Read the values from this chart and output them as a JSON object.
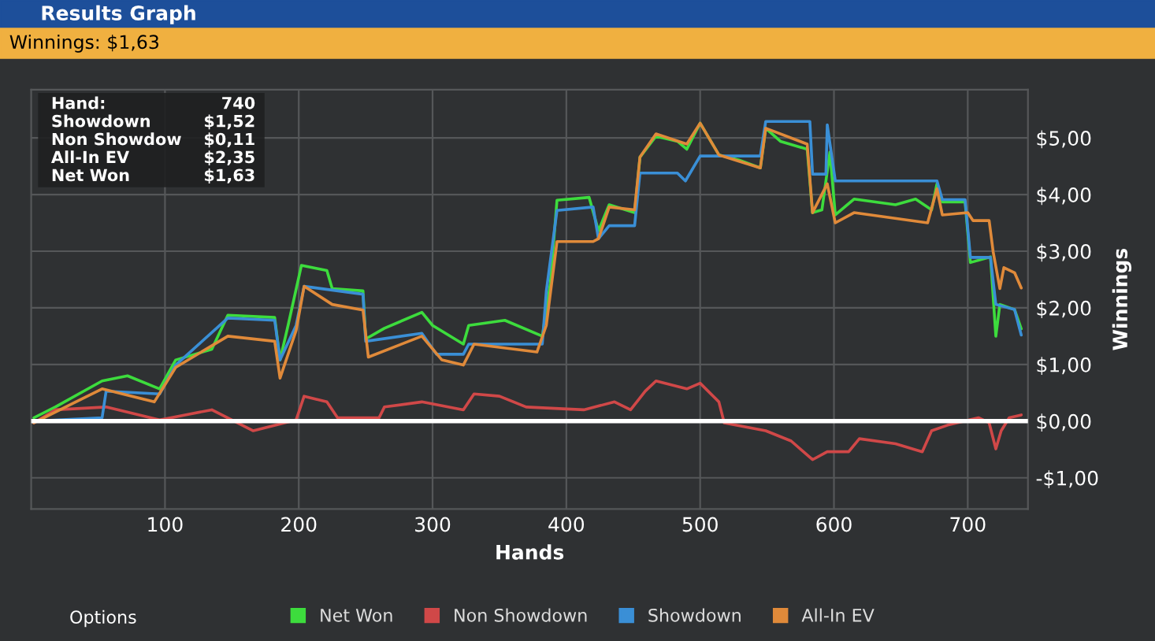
{
  "chart_data": {
    "type": "line",
    "title": "Results Graph",
    "subtitle": "Winnings: $1,63",
    "xlabel": "Hands",
    "ylabel": "Winnings",
    "xlim": [
      0,
      745
    ],
    "xticks": [
      100,
      200,
      300,
      400,
      500,
      600,
      700
    ],
    "ylim": [
      -1.55,
      5.85
    ],
    "yticks": [
      {
        "value": -1,
        "label": "-$1,00"
      },
      {
        "value": 0,
        "label": "$0,00"
      },
      {
        "value": 1,
        "label": "$1,00"
      },
      {
        "value": 2,
        "label": "$2,00"
      },
      {
        "value": 3,
        "label": "$3,00"
      },
      {
        "value": 4,
        "label": "$4,00"
      },
      {
        "value": 5,
        "label": "$5,00"
      }
    ],
    "grid": true,
    "legend": "bottom",
    "marker": "none",
    "line_style": "solid",
    "ref_lines": [
      {
        "axis": "y",
        "value": 0,
        "color": "#ffffff"
      }
    ],
    "annotations": [
      "Hand:",
      "740",
      "Showdown",
      "$1,52",
      "Non Showdow",
      "$0,11",
      "All-In EV",
      "$2,35",
      "Net Won",
      "$1,63",
      "Options"
    ],
    "series": [
      {
        "name": "Net Won",
        "color": "#3ddc3d",
        "x": [
          2,
          18,
          53,
          72,
          96,
          108,
          135,
          147,
          182,
          186,
          192,
          202,
          221,
          225,
          248,
          250,
          264,
          292,
          300,
          323,
          327,
          354,
          382,
          388,
          393,
          417,
          424,
          432,
          451,
          455,
          467,
          483,
          490,
          500,
          514,
          529,
          545,
          549,
          560,
          580,
          584,
          591,
          597,
          601,
          615,
          646,
          661,
          673,
          677,
          681,
          698,
          702,
          717,
          721,
          724,
          735,
          740
        ],
        "values": [
          0.06,
          0.25,
          0.71,
          0.8,
          0.57,
          1.08,
          1.27,
          1.87,
          1.83,
          1.08,
          1.69,
          2.75,
          2.66,
          2.34,
          2.3,
          1.45,
          1.64,
          1.92,
          1.69,
          1.36,
          1.69,
          1.78,
          1.5,
          2.43,
          3.9,
          3.95,
          3.36,
          3.82,
          3.68,
          4.66,
          5.03,
          4.94,
          4.8,
          5.26,
          4.7,
          4.61,
          4.47,
          5.17,
          4.94,
          4.8,
          3.68,
          3.73,
          4.75,
          3.64,
          3.92,
          3.82,
          3.92,
          3.73,
          4.19,
          3.87,
          3.87,
          2.8,
          2.9,
          1.5,
          2.06,
          1.97,
          1.63
        ]
      },
      {
        "name": "Non Showdown",
        "color": "#d04848",
        "x": [
          2,
          18,
          56,
          96,
          115,
          135,
          166,
          198,
          204,
          221,
          229,
          260,
          264,
          292,
          323,
          331,
          350,
          370,
          413,
          436,
          448,
          459,
          467,
          490,
          500,
          514,
          518,
          549,
          568,
          584,
          595,
          611,
          619,
          646,
          666,
          673,
          685,
          708,
          716,
          721,
          725,
          731,
          740
        ],
        "values": [
          -0.03,
          0.2,
          0.25,
          0.02,
          0.11,
          0.2,
          -0.17,
          0.02,
          0.44,
          0.34,
          0.06,
          0.06,
          0.25,
          0.34,
          0.2,
          0.48,
          0.44,
          0.25,
          0.2,
          0.34,
          0.2,
          0.53,
          0.71,
          0.57,
          0.67,
          0.34,
          -0.03,
          -0.17,
          -0.35,
          -0.68,
          -0.54,
          -0.54,
          -0.31,
          -0.4,
          -0.54,
          -0.17,
          -0.07,
          0.06,
          -0.03,
          -0.49,
          -0.17,
          0.06,
          0.11
        ]
      },
      {
        "name": "Showdown",
        "color": "#3a8fd6",
        "x": [
          2,
          53,
          56,
          96,
          108,
          147,
          182,
          186,
          198,
          204,
          248,
          250,
          292,
          303,
          323,
          327,
          382,
          385,
          393,
          420,
          424,
          432,
          451,
          455,
          483,
          489,
          500,
          545,
          549,
          582,
          584,
          594,
          595,
          601,
          677,
          681,
          698,
          702,
          717,
          721,
          735,
          740
        ],
        "values": [
          0,
          0.06,
          0.53,
          0.48,
          0.99,
          1.82,
          1.78,
          1.08,
          1.69,
          2.38,
          2.24,
          1.41,
          1.55,
          1.18,
          1.18,
          1.36,
          1.36,
          2.29,
          3.72,
          3.78,
          3.22,
          3.45,
          3.45,
          4.38,
          4.38,
          4.24,
          4.68,
          4.68,
          5.29,
          5.29,
          4.36,
          4.36,
          5.23,
          4.24,
          4.24,
          3.91,
          3.91,
          2.89,
          2.89,
          2.06,
          1.97,
          1.52
        ]
      },
      {
        "name": "All-In EV",
        "color": "#e08a3a",
        "x": [
          2,
          18,
          53,
          92,
          108,
          147,
          182,
          186,
          198,
          204,
          225,
          248,
          252,
          292,
          307,
          323,
          331,
          378,
          385,
          393,
          420,
          424,
          432,
          451,
          455,
          467,
          490,
          500,
          514,
          545,
          549,
          580,
          584,
          595,
          601,
          615,
          670,
          677,
          681,
          700,
          704,
          716,
          719,
          724,
          727,
          735,
          740
        ],
        "values": [
          -0.03,
          0.16,
          0.57,
          0.34,
          0.95,
          1.5,
          1.41,
          0.76,
          1.6,
          2.38,
          2.06,
          1.96,
          1.13,
          1.5,
          1.08,
          0.99,
          1.36,
          1.22,
          1.69,
          3.17,
          3.17,
          3.22,
          3.78,
          3.73,
          4.66,
          5.07,
          4.89,
          5.26,
          4.7,
          4.47,
          5.17,
          4.89,
          3.68,
          4.19,
          3.5,
          3.68,
          3.5,
          4.1,
          3.64,
          3.68,
          3.54,
          3.54,
          2.99,
          2.34,
          2.71,
          2.62,
          2.35
        ]
      }
    ]
  }
}
